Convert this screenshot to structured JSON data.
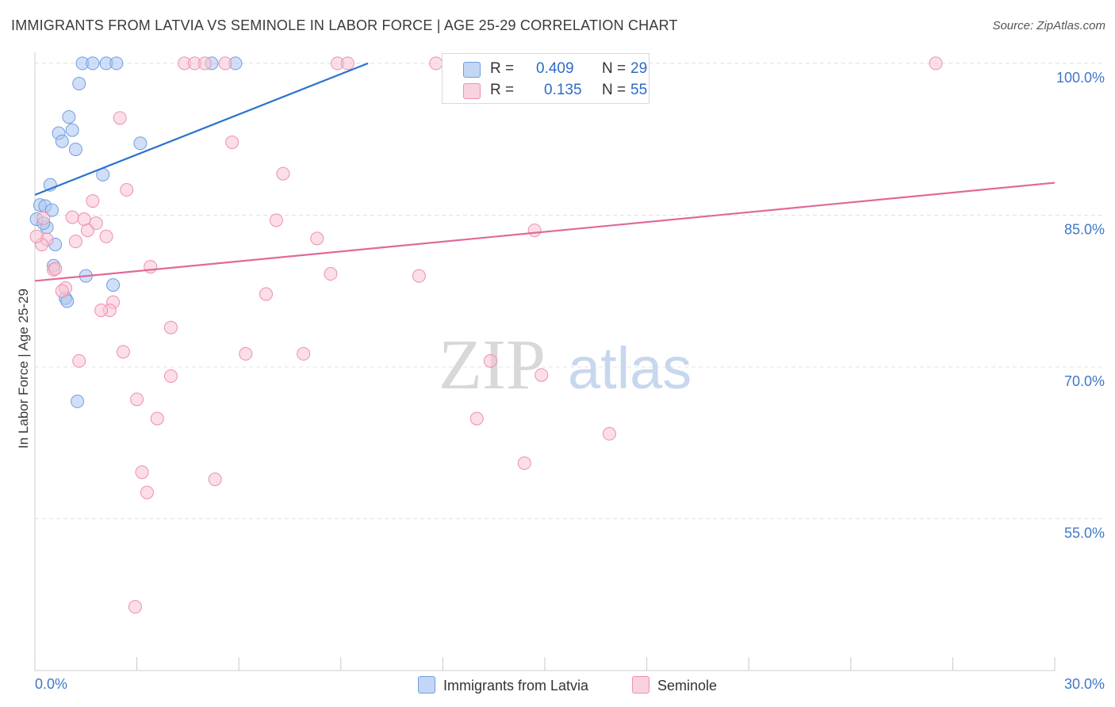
{
  "header": {
    "title": "IMMIGRANTS FROM LATVIA VS SEMINOLE IN LABOR FORCE | AGE 25-29 CORRELATION CHART",
    "source": "Source: ZipAtlas.com"
  },
  "watermark": {
    "zip": "ZIP",
    "atlas": "atlas"
  },
  "legend": {
    "rows": [
      {
        "r_label": "R =",
        "r_value": "0.409",
        "n_label": "N =",
        "n_value": "29"
      },
      {
        "r_label": "R =",
        "r_value": "0.135",
        "n_label": "N =",
        "n_value": "55"
      }
    ]
  },
  "chart_data": {
    "type": "scatter",
    "title": "IMMIGRANTS FROM LATVIA VS SEMINOLE IN LABOR FORCE | AGE 25-29 CORRELATION CHART",
    "xlabel": "",
    "ylabel": "In Labor Force | Age 25-29",
    "xlim": [
      0,
      30
    ],
    "ylim": [
      42,
      102
    ],
    "x_tick_labels": [
      "0.0%",
      "30.0%"
    ],
    "y_ticks": [
      55,
      70,
      85,
      100
    ],
    "y_tick_labels": [
      "55.0%",
      "70.0%",
      "85.0%",
      "100.0%"
    ],
    "grid": true,
    "legend_position": "top-center",
    "series": [
      {
        "name": "Immigrants from Latvia",
        "color": "#a9c4f0",
        "stroke": "#6f9fe0",
        "line_color": "#2a72d0",
        "trend": [
          [
            0,
            87.0
          ],
          [
            9.8,
            100.0
          ]
        ],
        "points": [
          [
            1.4,
            100.0
          ],
          [
            1.7,
            100.0
          ],
          [
            2.1,
            100.0
          ],
          [
            2.4,
            100.0
          ],
          [
            5.2,
            100.0
          ],
          [
            5.9,
            100.0
          ],
          [
            1.3,
            98.0
          ],
          [
            1.0,
            94.7
          ],
          [
            0.7,
            93.1
          ],
          [
            1.1,
            93.4
          ],
          [
            0.8,
            92.3
          ],
          [
            3.1,
            92.1
          ],
          [
            1.2,
            91.5
          ],
          [
            2.0,
            89.0
          ],
          [
            0.45,
            88.0
          ],
          [
            0.15,
            86.0
          ],
          [
            0.3,
            85.9
          ],
          [
            0.5,
            85.5
          ],
          [
            0.35,
            83.8
          ],
          [
            0.6,
            82.1
          ],
          [
            0.55,
            80.0
          ],
          [
            1.5,
            79.0
          ],
          [
            2.3,
            78.1
          ],
          [
            0.9,
            76.8
          ],
          [
            0.95,
            76.5
          ],
          [
            1.25,
            66.6
          ],
          [
            14.3,
            100.0
          ],
          [
            0.05,
            84.6
          ],
          [
            0.25,
            84.2
          ]
        ]
      },
      {
        "name": "Seminole",
        "color": "#f7c3d4",
        "stroke": "#ee8fae",
        "line_color": "#e0699a",
        "trend": [
          [
            0,
            78.5
          ],
          [
            30,
            88.2
          ]
        ],
        "points": [
          [
            4.4,
            100.0
          ],
          [
            4.7,
            100.0
          ],
          [
            5.0,
            100.0
          ],
          [
            5.6,
            100.0
          ],
          [
            8.9,
            100.0
          ],
          [
            9.2,
            100.0
          ],
          [
            11.8,
            100.0
          ],
          [
            15.6,
            100.0
          ],
          [
            26.5,
            100.0
          ],
          [
            2.5,
            94.6
          ],
          [
            5.8,
            92.2
          ],
          [
            7.3,
            89.1
          ],
          [
            2.7,
            87.5
          ],
          [
            1.7,
            86.4
          ],
          [
            1.1,
            84.8
          ],
          [
            1.45,
            84.6
          ],
          [
            1.8,
            84.2
          ],
          [
            7.1,
            84.5
          ],
          [
            1.55,
            83.5
          ],
          [
            2.1,
            82.9
          ],
          [
            0.35,
            82.6
          ],
          [
            1.2,
            82.4
          ],
          [
            0.2,
            82.1
          ],
          [
            8.3,
            82.7
          ],
          [
            14.7,
            83.5
          ],
          [
            0.55,
            79.6
          ],
          [
            0.6,
            79.7
          ],
          [
            3.4,
            79.9
          ],
          [
            8.7,
            79.2
          ],
          [
            11.3,
            79.0
          ],
          [
            0.9,
            77.8
          ],
          [
            0.8,
            77.5
          ],
          [
            6.8,
            77.2
          ],
          [
            2.3,
            76.4
          ],
          [
            2.2,
            75.6
          ],
          [
            1.95,
            75.6
          ],
          [
            4.0,
            73.9
          ],
          [
            2.6,
            71.5
          ],
          [
            6.2,
            71.3
          ],
          [
            7.9,
            71.3
          ],
          [
            1.3,
            70.6
          ],
          [
            13.4,
            70.6
          ],
          [
            4.0,
            69.1
          ],
          [
            14.9,
            69.2
          ],
          [
            3.0,
            66.8
          ],
          [
            3.6,
            64.9
          ],
          [
            13.0,
            64.9
          ],
          [
            16.9,
            63.4
          ],
          [
            14.4,
            60.5
          ],
          [
            3.15,
            59.6
          ],
          [
            5.3,
            58.9
          ],
          [
            3.3,
            57.6
          ],
          [
            2.95,
            46.3
          ],
          [
            0.25,
            84.7
          ],
          [
            0.05,
            82.9
          ]
        ]
      }
    ]
  }
}
